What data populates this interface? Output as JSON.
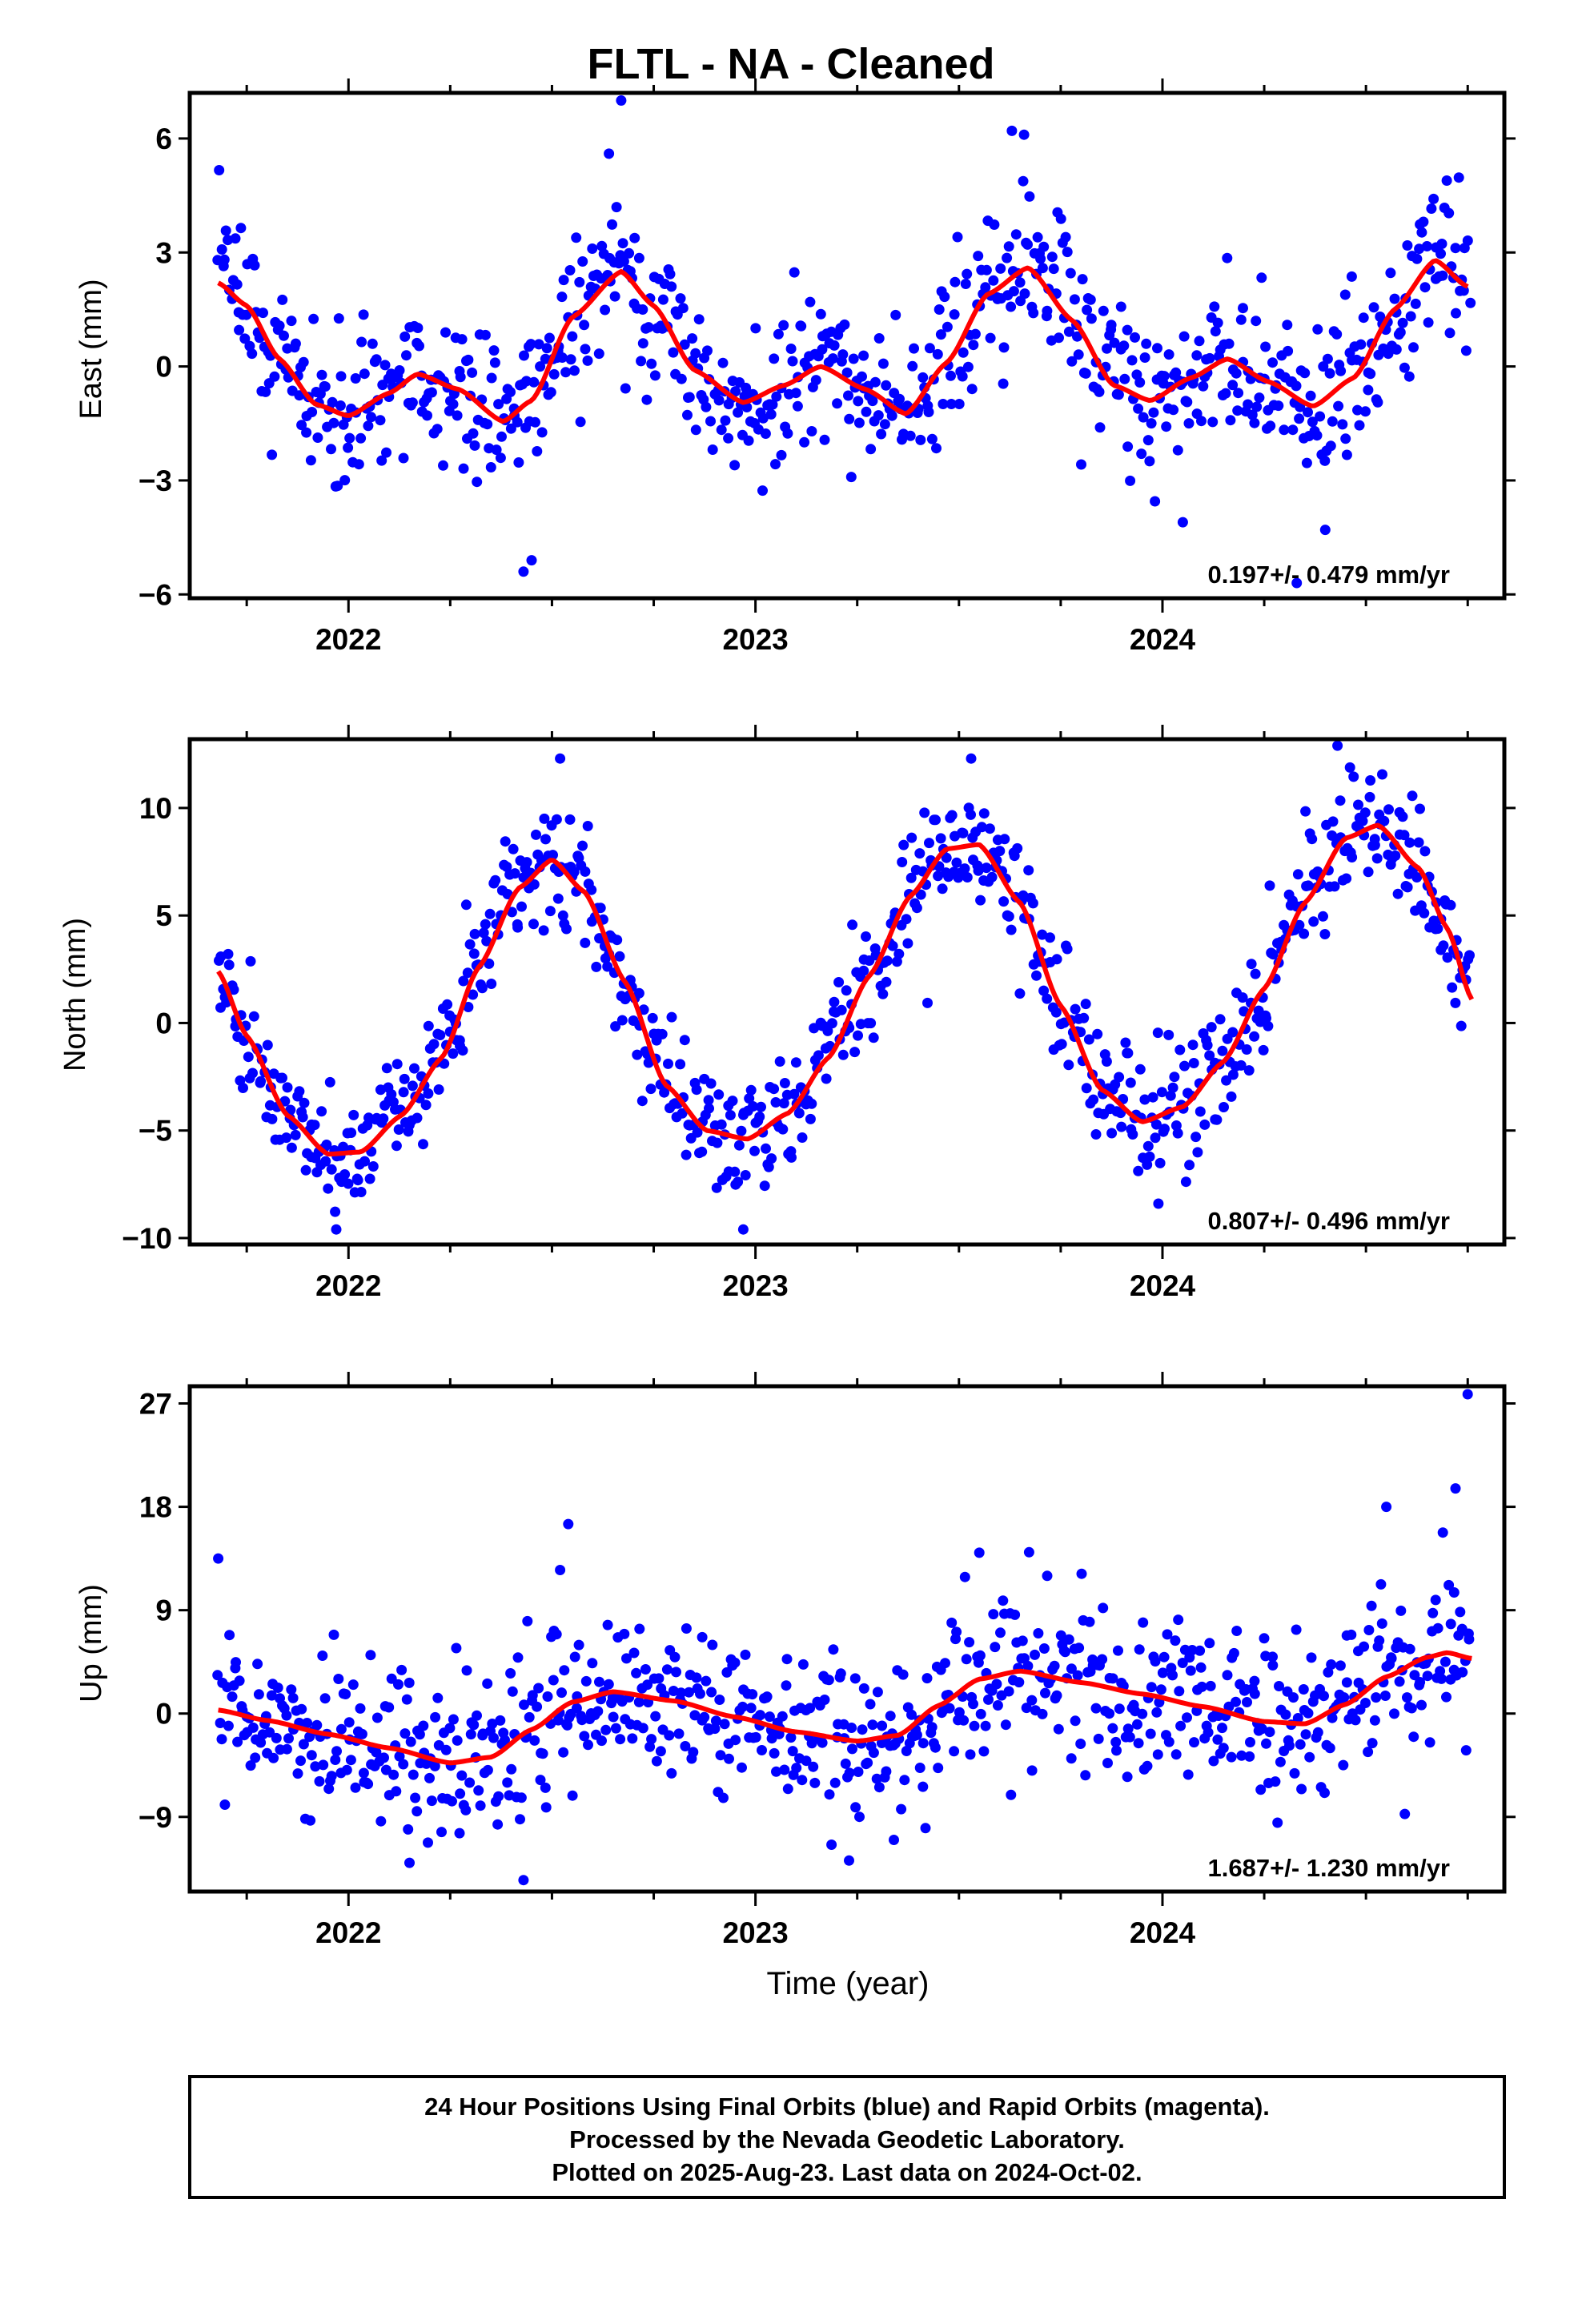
{
  "title": "FLTL  - NA - Cleaned",
  "xlabel": "Time (year)",
  "footer": {
    "line1": "24 Hour Positions Using Final Orbits (blue) and Rapid Orbits (magenta).",
    "line2": "Processed by the Nevada Geodetic Laboratory.",
    "line3": "Plotted on 2025-Aug-23. Last data on 2024-Oct-02."
  },
  "colors": {
    "points": "#0000ff",
    "fit": "#ff0000",
    "frame": "#000000"
  },
  "chart_data": [
    {
      "type": "scatter",
      "component": "east",
      "ylabel": "East (mm)",
      "xlim": [
        2021.61,
        2024.84
      ],
      "ylim": [
        -6.1,
        7.2
      ],
      "yticks": [
        6,
        3,
        0,
        -3,
        -6
      ],
      "yticklabels": [
        "6",
        "3",
        "0",
        "−3",
        "−6"
      ],
      "xticks": [
        2022,
        2023,
        2024
      ],
      "xticklabels": [
        "2022",
        "2023",
        "2024"
      ],
      "rate": "0.197+/- 0.479 mm/yr",
      "point_spread": 1.05,
      "outliers": [
        {
          "x": 2022.43,
          "y": -5.4
        },
        {
          "x": 2022.45,
          "y": -5.1
        },
        {
          "x": 2022.67,
          "y": 7.0
        },
        {
          "x": 2022.64,
          "y": 5.6
        },
        {
          "x": 2023.63,
          "y": 6.2
        },
        {
          "x": 2023.66,
          "y": 6.1
        },
        {
          "x": 2024.33,
          "y": -5.7
        },
        {
          "x": 2024.4,
          "y": -4.3
        },
        {
          "x": 2024.05,
          "y": -4.1
        }
      ],
      "fit": [
        {
          "x": 2021.68,
          "y": 2.2
        },
        {
          "x": 2021.75,
          "y": 1.6
        },
        {
          "x": 2021.83,
          "y": 0.2
        },
        {
          "x": 2021.92,
          "y": -1.0
        },
        {
          "x": 2022.0,
          "y": -1.3
        },
        {
          "x": 2022.1,
          "y": -0.7
        },
        {
          "x": 2022.17,
          "y": -0.2
        },
        {
          "x": 2022.27,
          "y": -0.6
        },
        {
          "x": 2022.38,
          "y": -1.45
        },
        {
          "x": 2022.45,
          "y": -0.9
        },
        {
          "x": 2022.55,
          "y": 1.3
        },
        {
          "x": 2022.67,
          "y": 2.5
        },
        {
          "x": 2022.75,
          "y": 1.6
        },
        {
          "x": 2022.85,
          "y": -0.1
        },
        {
          "x": 2022.97,
          "y": -0.95
        },
        {
          "x": 2023.07,
          "y": -0.5
        },
        {
          "x": 2023.16,
          "y": 0.0
        },
        {
          "x": 2023.27,
          "y": -0.6
        },
        {
          "x": 2023.37,
          "y": -1.25
        },
        {
          "x": 2023.47,
          "y": 0.1
        },
        {
          "x": 2023.57,
          "y": 1.9
        },
        {
          "x": 2023.67,
          "y": 2.6
        },
        {
          "x": 2023.78,
          "y": 1.2
        },
        {
          "x": 2023.88,
          "y": -0.5
        },
        {
          "x": 2023.97,
          "y": -0.9
        },
        {
          "x": 2024.07,
          "y": -0.3
        },
        {
          "x": 2024.16,
          "y": 0.2
        },
        {
          "x": 2024.26,
          "y": -0.4
        },
        {
          "x": 2024.37,
          "y": -1.05
        },
        {
          "x": 2024.47,
          "y": -0.3
        },
        {
          "x": 2024.57,
          "y": 1.5
        },
        {
          "x": 2024.67,
          "y": 2.8
        },
        {
          "x": 2024.75,
          "y": 2.1
        }
      ]
    },
    {
      "type": "scatter",
      "component": "north",
      "ylabel": "North (mm)",
      "xlim": [
        2021.61,
        2024.84
      ],
      "ylim": [
        -10.3,
        13.2
      ],
      "yticks": [
        10,
        5,
        0,
        -5,
        -10
      ],
      "yticklabels": [
        "10",
        "5",
        "0",
        "−5",
        "−10"
      ],
      "xticks": [
        2022,
        2023,
        2024
      ],
      "xticklabels": [
        "2022",
        "2023",
        "2024"
      ],
      "rate": "0.807+/- 0.496 mm/yr",
      "point_spread": 1.35,
      "outliers": [
        {
          "x": 2022.52,
          "y": 12.3
        },
        {
          "x": 2021.97,
          "y": -9.6
        },
        {
          "x": 2022.97,
          "y": -9.6
        },
        {
          "x": 2023.53,
          "y": 12.3
        },
        {
          "x": 2024.43,
          "y": 12.9
        },
        {
          "x": 2023.99,
          "y": -8.4
        }
      ],
      "fit": [
        {
          "x": 2021.68,
          "y": 2.4
        },
        {
          "x": 2021.75,
          "y": -0.6
        },
        {
          "x": 2021.85,
          "y": -4.3
        },
        {
          "x": 2021.95,
          "y": -6.1
        },
        {
          "x": 2022.03,
          "y": -6.0
        },
        {
          "x": 2022.13,
          "y": -4.3
        },
        {
          "x": 2022.23,
          "y": -1.6
        },
        {
          "x": 2022.32,
          "y": 2.6
        },
        {
          "x": 2022.42,
          "y": 6.3
        },
        {
          "x": 2022.5,
          "y": 7.6
        },
        {
          "x": 2022.58,
          "y": 6.1
        },
        {
          "x": 2022.68,
          "y": 1.9
        },
        {
          "x": 2022.78,
          "y": -2.9
        },
        {
          "x": 2022.88,
          "y": -5.0
        },
        {
          "x": 2022.98,
          "y": -5.4
        },
        {
          "x": 2023.08,
          "y": -4.2
        },
        {
          "x": 2023.18,
          "y": -1.6
        },
        {
          "x": 2023.28,
          "y": 2.2
        },
        {
          "x": 2023.38,
          "y": 5.9
        },
        {
          "x": 2023.47,
          "y": 8.1
        },
        {
          "x": 2023.55,
          "y": 8.3
        },
        {
          "x": 2023.65,
          "y": 5.6
        },
        {
          "x": 2023.75,
          "y": 0.8
        },
        {
          "x": 2023.85,
          "y": -3.1
        },
        {
          "x": 2023.95,
          "y": -4.6
        },
        {
          "x": 2024.05,
          "y": -3.9
        },
        {
          "x": 2024.15,
          "y": -1.8
        },
        {
          "x": 2024.25,
          "y": 1.6
        },
        {
          "x": 2024.35,
          "y": 5.6
        },
        {
          "x": 2024.45,
          "y": 8.6
        },
        {
          "x": 2024.53,
          "y": 9.2
        },
        {
          "x": 2024.63,
          "y": 7.2
        },
        {
          "x": 2024.7,
          "y": 4.4
        },
        {
          "x": 2024.76,
          "y": 1.1
        }
      ]
    },
    {
      "type": "scatter",
      "component": "up",
      "ylabel": "Up (mm)",
      "xlim": [
        2021.61,
        2024.84
      ],
      "ylim": [
        -15.5,
        28.5
      ],
      "yticks": [
        27,
        18,
        9,
        0,
        -9
      ],
      "yticklabels": [
        "27",
        "18",
        "9",
        "0",
        "−9"
      ],
      "xticks": [
        2022,
        2023,
        2024
      ],
      "xticklabels": [
        "2022",
        "2023",
        "2024"
      ],
      "rate": "1.687+/- 1.230 mm/yr",
      "point_spread": 3.6,
      "outliers": [
        {
          "x": 2024.75,
          "y": 27.8
        },
        {
          "x": 2024.72,
          "y": 19.6
        },
        {
          "x": 2024.55,
          "y": 18.0
        },
        {
          "x": 2022.54,
          "y": 16.5
        },
        {
          "x": 2022.52,
          "y": 12.5
        },
        {
          "x": 2022.43,
          "y": -14.5
        },
        {
          "x": 2022.15,
          "y": -13.0
        },
        {
          "x": 2023.23,
          "y": -12.8
        },
        {
          "x": 2021.68,
          "y": 13.5
        },
        {
          "x": 2023.55,
          "y": 14.0
        },
        {
          "x": 2023.34,
          "y": -11.0
        }
      ],
      "fit": [
        {
          "x": 2021.68,
          "y": 0.3
        },
        {
          "x": 2021.8,
          "y": -0.6
        },
        {
          "x": 2021.95,
          "y": -1.8
        },
        {
          "x": 2022.1,
          "y": -3.0
        },
        {
          "x": 2022.25,
          "y": -4.3
        },
        {
          "x": 2022.35,
          "y": -3.8
        },
        {
          "x": 2022.45,
          "y": -1.4
        },
        {
          "x": 2022.55,
          "y": 1.0
        },
        {
          "x": 2022.65,
          "y": 1.9
        },
        {
          "x": 2022.8,
          "y": 1.1
        },
        {
          "x": 2022.95,
          "y": -0.3
        },
        {
          "x": 2023.1,
          "y": -1.6
        },
        {
          "x": 2023.25,
          "y": -2.4
        },
        {
          "x": 2023.35,
          "y": -1.9
        },
        {
          "x": 2023.45,
          "y": 0.7
        },
        {
          "x": 2023.55,
          "y": 3.0
        },
        {
          "x": 2023.65,
          "y": 3.7
        },
        {
          "x": 2023.8,
          "y": 2.7
        },
        {
          "x": 2023.95,
          "y": 1.7
        },
        {
          "x": 2024.1,
          "y": 0.6
        },
        {
          "x": 2024.25,
          "y": -0.7
        },
        {
          "x": 2024.35,
          "y": -0.9
        },
        {
          "x": 2024.45,
          "y": 0.8
        },
        {
          "x": 2024.55,
          "y": 3.2
        },
        {
          "x": 2024.65,
          "y": 4.9
        },
        {
          "x": 2024.7,
          "y": 5.3
        },
        {
          "x": 2024.76,
          "y": 4.8
        }
      ]
    }
  ]
}
